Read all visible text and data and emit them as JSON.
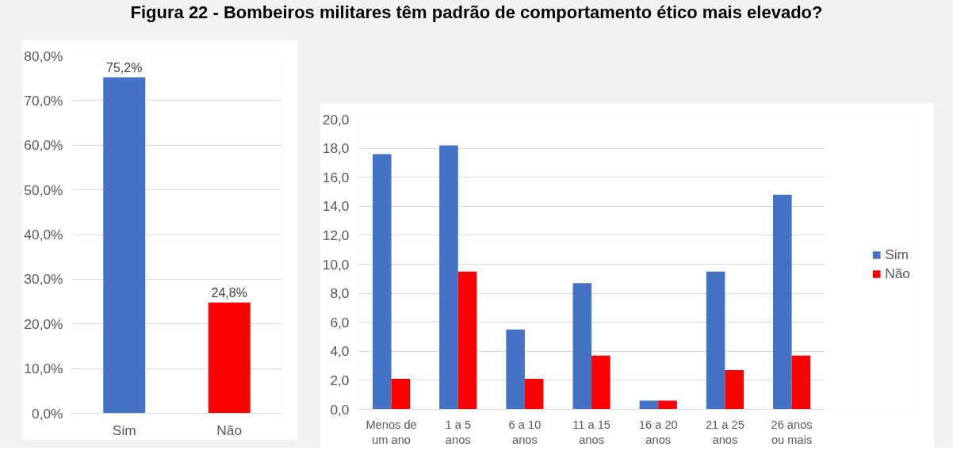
{
  "chart_data": [
    {
      "type": "bar",
      "title": "Figura 22 - Bombeiros militares têm padrão de comportamento ético mais elevado?",
      "categories": [
        "Sim",
        "Não"
      ],
      "values": [
        75.2,
        24.8
      ],
      "colors": [
        "#4472c4",
        "#ff0000"
      ],
      "value_labels": [
        "75,2%",
        "24,8%"
      ],
      "ylim": [
        0,
        80
      ],
      "yticks": [
        {
          "value": 0,
          "label": "0,0%"
        },
        {
          "value": 10,
          "label": "10,0%"
        },
        {
          "value": 20,
          "label": "20,0%"
        },
        {
          "value": 30,
          "label": "30,0%"
        },
        {
          "value": 40,
          "label": "40,0%"
        },
        {
          "value": 50,
          "label": "50,0%"
        },
        {
          "value": 60,
          "label": "60,0%"
        },
        {
          "value": 70,
          "label": "70,0%"
        },
        {
          "value": 80,
          "label": "80,0%"
        }
      ],
      "grid": "y",
      "legend": false
    },
    {
      "type": "bar",
      "categories": [
        "Menos de um ano",
        "1 a 5 anos",
        "6 a 10 anos",
        "11 a 15 anos",
        "16 a 20 anos",
        "21 a 25 anos",
        "26 anos ou mais"
      ],
      "series": [
        {
          "name": "Sim",
          "color": "#4472c4",
          "values": [
            17.6,
            18.2,
            5.5,
            8.7,
            0.6,
            9.5,
            14.8
          ]
        },
        {
          "name": "Não",
          "color": "#ff0000",
          "values": [
            2.1,
            9.5,
            2.1,
            3.7,
            0.6,
            2.7,
            3.7
          ]
        }
      ],
      "ylim": [
        0,
        20
      ],
      "yticks": [
        {
          "value": 0,
          "label": "0,0"
        },
        {
          "value": 2,
          "label": "2,0"
        },
        {
          "value": 4,
          "label": "4,0"
        },
        {
          "value": 6,
          "label": "6,0"
        },
        {
          "value": 8,
          "label": "8,0"
        },
        {
          "value": 10,
          "label": "10,0"
        },
        {
          "value": 12,
          "label": "12,0"
        },
        {
          "value": 14,
          "label": "14,0"
        },
        {
          "value": 16,
          "label": "16,0"
        },
        {
          "value": 18,
          "label": "18,0"
        },
        {
          "value": 20,
          "label": "20,0"
        }
      ],
      "grid": "y",
      "legend": "right"
    }
  ]
}
